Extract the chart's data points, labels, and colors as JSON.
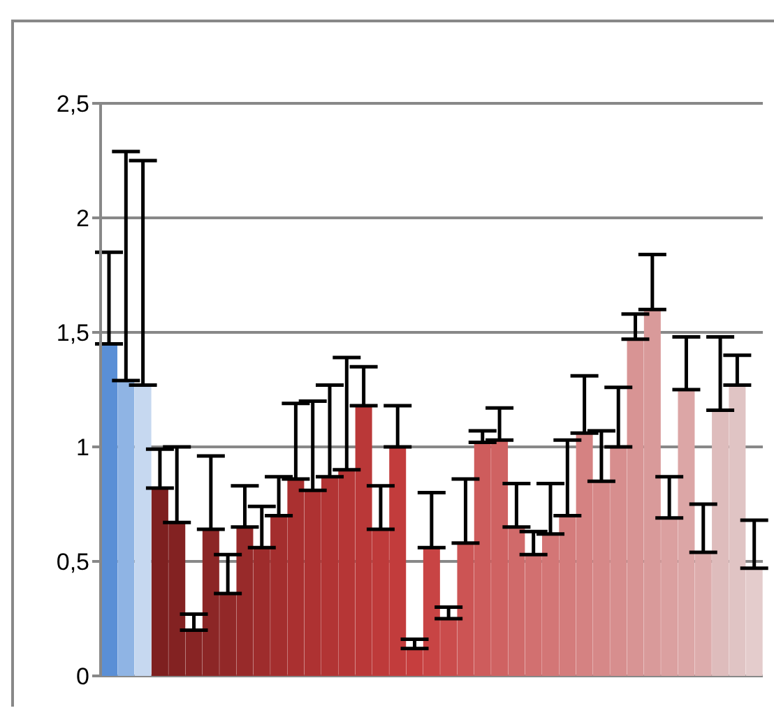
{
  "chart_data": {
    "type": "bar",
    "categories": [
      null,
      null,
      null,
      null,
      null,
      null,
      null,
      null,
      null,
      null,
      null,
      null,
      null,
      null,
      null,
      null,
      null,
      null,
      null,
      null,
      null,
      null,
      null,
      null,
      null,
      null,
      null,
      null,
      null,
      null,
      null,
      null,
      null,
      null,
      null,
      null,
      null,
      null,
      null
    ],
    "values": [
      1.45,
      1.29,
      1.27,
      0.82,
      0.67,
      0.2,
      0.64,
      0.36,
      0.65,
      0.56,
      0.7,
      0.86,
      0.81,
      0.87,
      0.9,
      1.18,
      0.64,
      1.0,
      0.12,
      0.56,
      0.25,
      0.58,
      1.02,
      1.03,
      0.65,
      0.53,
      0.62,
      0.7,
      1.06,
      0.85,
      1.0,
      1.47,
      1.6,
      0.69,
      1.25,
      0.54,
      1.16,
      1.27,
      0.47
    ],
    "errors": [
      [
        1.45,
        1.85
      ],
      [
        1.29,
        2.29
      ],
      [
        1.27,
        2.25
      ],
      [
        0.82,
        0.99
      ],
      [
        0.67,
        1.0
      ],
      [
        0.2,
        0.27
      ],
      [
        0.64,
        0.96
      ],
      [
        0.36,
        0.53
      ],
      [
        0.65,
        0.83
      ],
      [
        0.56,
        0.74
      ],
      [
        0.7,
        0.87
      ],
      [
        0.86,
        1.19
      ],
      [
        0.81,
        1.2
      ],
      [
        0.87,
        1.27
      ],
      [
        0.9,
        1.39
      ],
      [
        1.18,
        1.35
      ],
      [
        0.64,
        0.83
      ],
      [
        1.0,
        1.18
      ],
      [
        0.12,
        0.16
      ],
      [
        0.56,
        0.8
      ],
      [
        0.25,
        0.3
      ],
      [
        0.58,
        0.86
      ],
      [
        1.02,
        1.07
      ],
      [
        1.03,
        1.17
      ],
      [
        0.65,
        0.84
      ],
      [
        0.53,
        0.63
      ],
      [
        0.62,
        0.84
      ],
      [
        0.7,
        1.03
      ],
      [
        1.06,
        1.31
      ],
      [
        0.85,
        1.07
      ],
      [
        1.0,
        1.26
      ],
      [
        1.47,
        1.58
      ],
      [
        1.6,
        1.84
      ],
      [
        0.69,
        0.87
      ],
      [
        1.25,
        1.48
      ],
      [
        0.54,
        0.75
      ],
      [
        1.16,
        1.48
      ],
      [
        1.27,
        1.4
      ],
      [
        0.47,
        0.68
      ]
    ],
    "colors": [
      "#5a8fd6",
      "#8fb4e4",
      "#c6d8f0",
      "#7e2020",
      "#832222",
      "#882424",
      "#8c2626",
      "#922828",
      "#982a2a",
      "#9e2c2c",
      "#a42e2e",
      "#aa3030",
      "#ae3232",
      "#b23434",
      "#b63636",
      "#ba3838",
      "#be3a3a",
      "#c23c3c",
      "#c63e3e",
      "#c84444",
      "#ca4c4c",
      "#cc5454",
      "#ce5c5c",
      "#cf6262",
      "#d06a6a",
      "#d27070",
      "#d37676",
      "#d47c7c",
      "#d58282",
      "#d68888",
      "#d78e8e",
      "#d89494",
      "#d99a9a",
      "#dba0a0",
      "#dca6a6",
      "#ddacac",
      "#debcbc",
      "#e0c4c4",
      "#e4cccc"
    ],
    "ylim": [
      0,
      2.5
    ],
    "yticks": [
      {
        "value": 0,
        "label": "0"
      },
      {
        "value": 0.5,
        "label": "0,5"
      },
      {
        "value": 1,
        "label": "1"
      },
      {
        "value": 1.5,
        "label": "1,5"
      },
      {
        "value": 2,
        "label": "2"
      },
      {
        "value": 2.5,
        "label": "2,5"
      }
    ],
    "grid": "y"
  }
}
